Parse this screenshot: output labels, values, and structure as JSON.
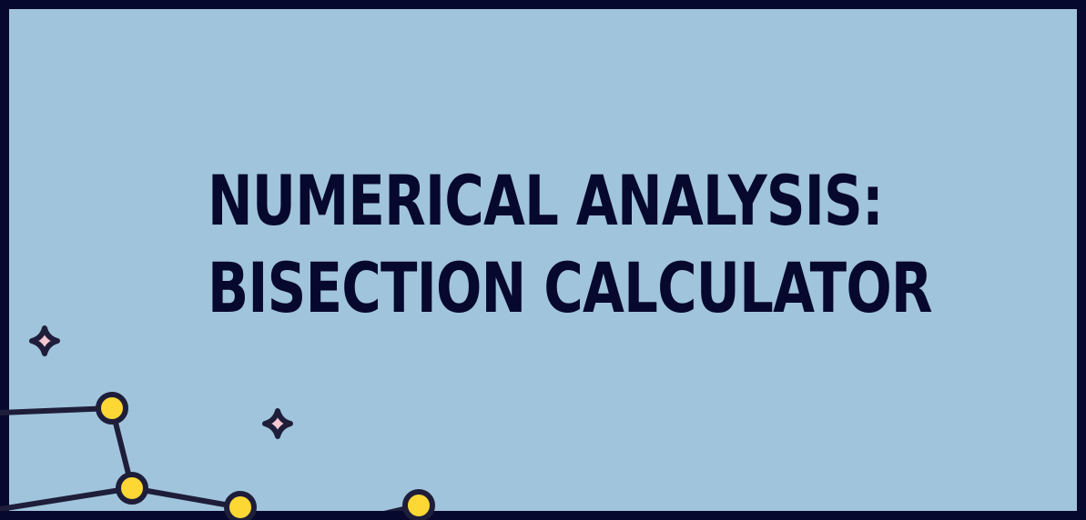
{
  "title": {
    "line1": "NUMERICAL ANALYSIS:",
    "line2": "BISECTION CALCULATOR"
  },
  "colors": {
    "background": "#a0c4db",
    "border": "#07082e",
    "text": "#07082e",
    "node_fill": "#fdd835",
    "line": "#1e1e3a",
    "sparkle_fill": "#f7c6d3"
  },
  "decoration": {
    "icons": [
      "sparkle-icon",
      "sparkle-icon",
      "node-icon"
    ]
  }
}
